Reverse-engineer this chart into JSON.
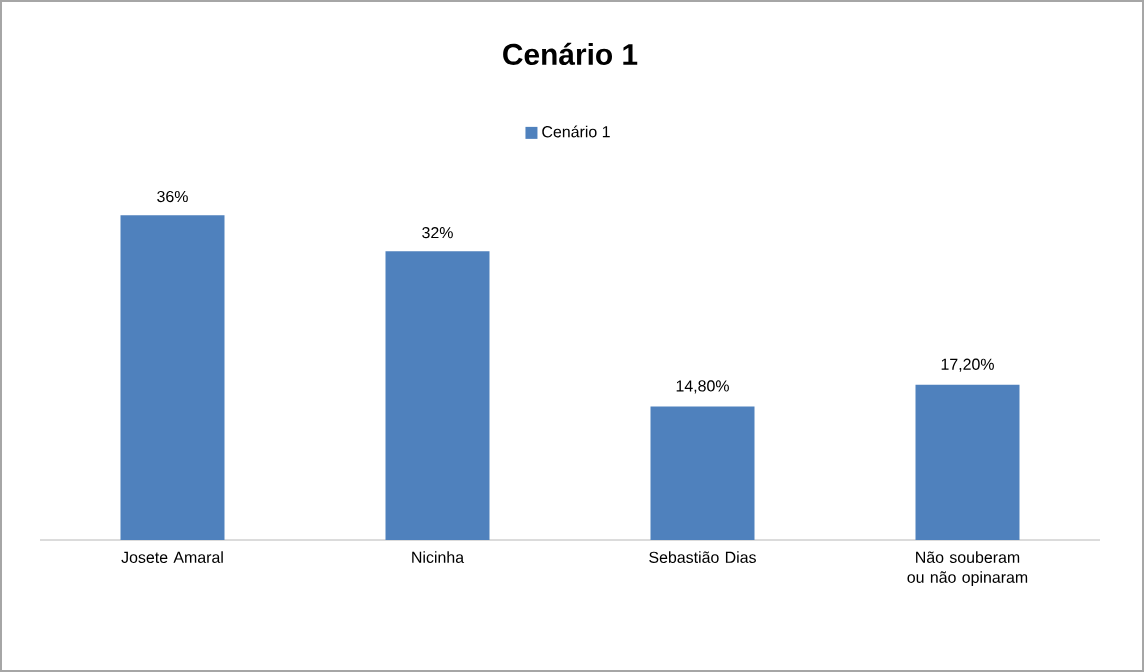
{
  "chart_data": {
    "type": "bar",
    "title": "Cenário 1",
    "categories": [
      "Josete Amaral",
      "Nicinha",
      "Sebastião Dias",
      "Não souberam ou não opinaram"
    ],
    "series": [
      {
        "name": "Cenário 1",
        "color": "#4f81bd",
        "values": [
          36,
          32,
          14.8,
          17.2
        ],
        "value_labels": [
          "36%",
          "32%",
          "14,80%",
          "17,20%"
        ]
      }
    ],
    "legend": "top"
  }
}
